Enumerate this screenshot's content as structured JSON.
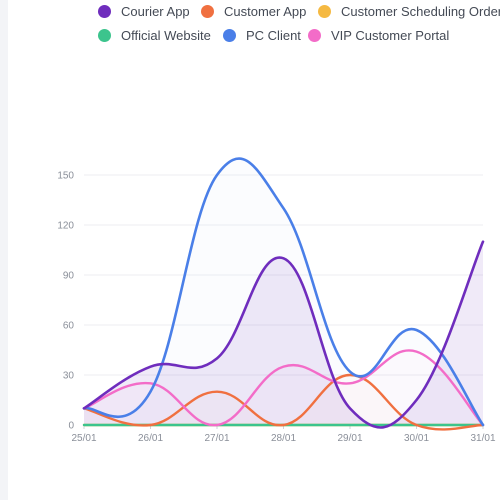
{
  "chart_data": {
    "type": "line",
    "categories": [
      "25/01",
      "26/01",
      "27/01",
      "28/01",
      "29/01",
      "30/01",
      "31/01"
    ],
    "ylim": [
      0,
      150
    ],
    "yticks": [
      0,
      30,
      60,
      90,
      120,
      150
    ],
    "grid": true,
    "legend_position": "top",
    "series": [
      {
        "name": "Courier App",
        "color": "#6f2dbd",
        "values": [
          10,
          35,
          40,
          100,
          10,
          15,
          110
        ],
        "area": true
      },
      {
        "name": "Customer App",
        "color": "#f07040",
        "values": [
          10,
          0,
          20,
          0,
          30,
          0,
          0
        ]
      },
      {
        "name": "Customer Scheduling Order",
        "color": "#f5b942",
        "values": [
          0,
          0,
          0,
          0,
          0,
          0,
          0
        ]
      },
      {
        "name": "Official Website",
        "color": "#3cc48d",
        "values": [
          0,
          0,
          0,
          0,
          0,
          0,
          0
        ]
      },
      {
        "name": "PC Client",
        "color": "#4a7fe8",
        "values": [
          10,
          20,
          150,
          130,
          32,
          57,
          0
        ]
      },
      {
        "name": "VIP Customer Portal",
        "color": "#f36cc8",
        "values": [
          10,
          25,
          0,
          35,
          25,
          44,
          0
        ]
      }
    ]
  }
}
